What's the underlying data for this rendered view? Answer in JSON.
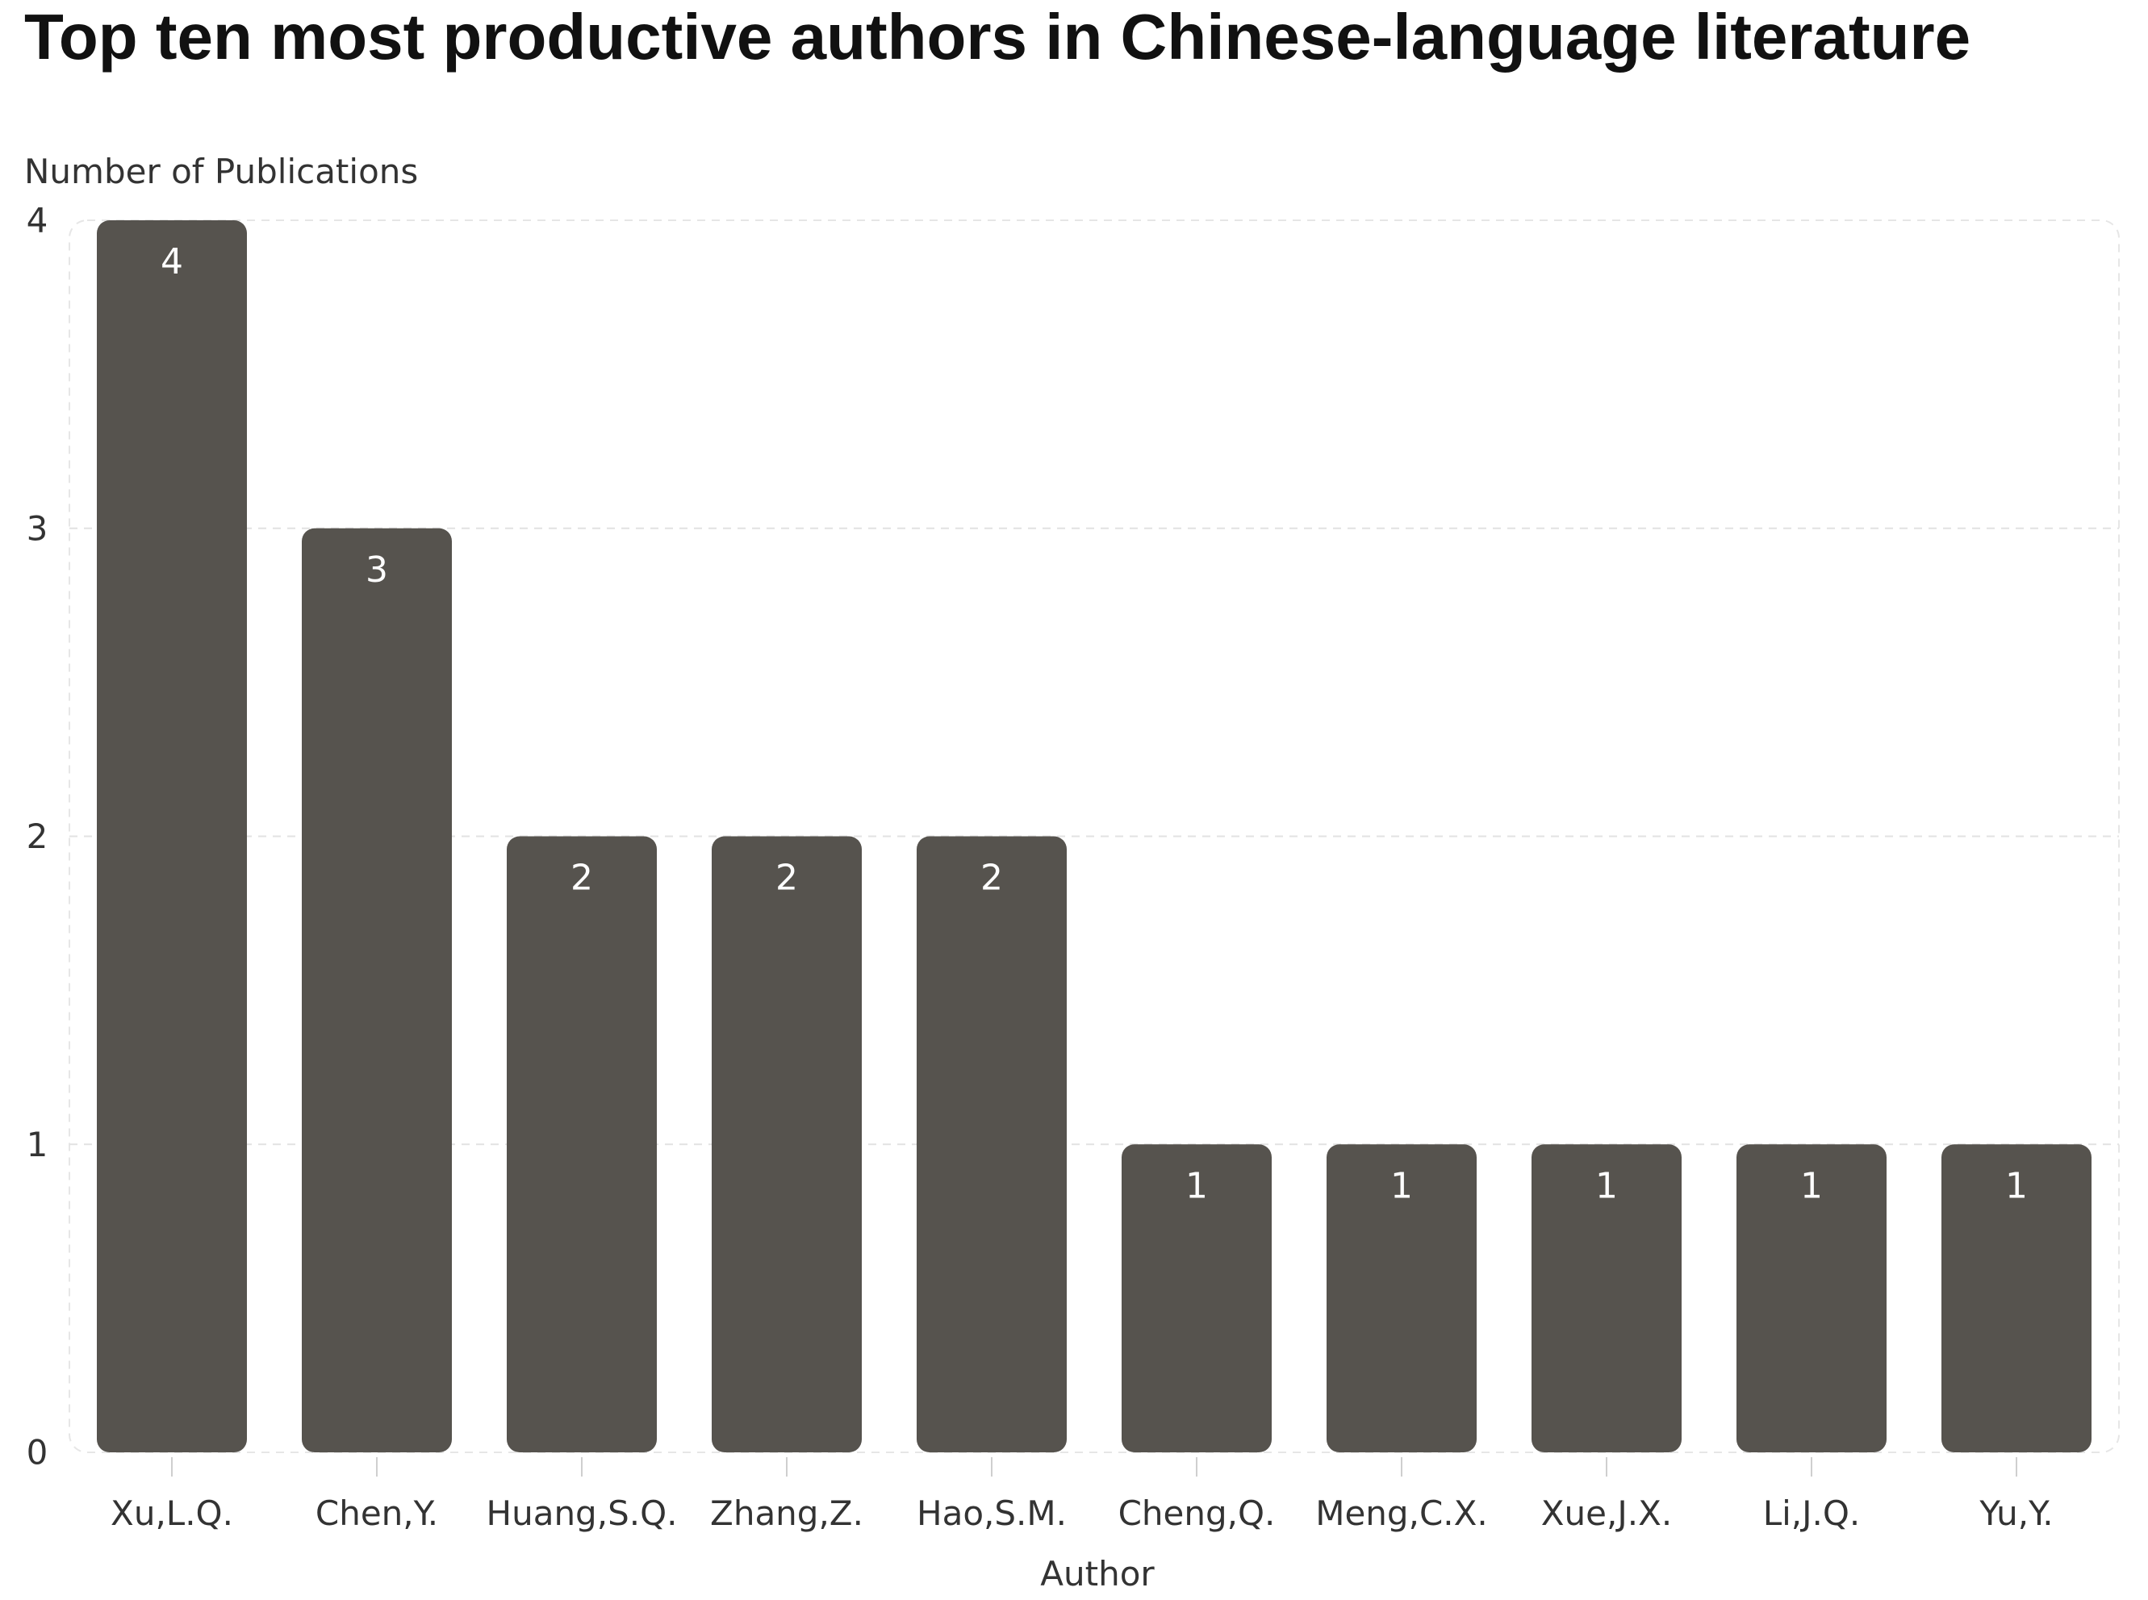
{
  "title": "Top ten most productive authors in Chinese-language literature",
  "chart_data": {
    "type": "bar",
    "title": "Top ten most productive authors in Chinese-language literature",
    "xlabel": "Author",
    "ylabel": "Number of Publications",
    "categories": [
      "Xu,L.Q.",
      "Chen,Y.",
      "Huang,S.Q.",
      "Zhang,Z.",
      "Hao,S.M.",
      "Cheng,Q.",
      "Meng,C.X.",
      "Xue,J.X.",
      "Li,J.Q.",
      "Yu,Y."
    ],
    "values": [
      4,
      3,
      2,
      2,
      2,
      1,
      1,
      1,
      1,
      1
    ],
    "ylim": [
      0,
      4
    ],
    "yticks": [
      0,
      1,
      2,
      3,
      4
    ],
    "grid": true,
    "data_labels": true,
    "bar_color": "#56534e",
    "label_color": "#ffffff"
  }
}
